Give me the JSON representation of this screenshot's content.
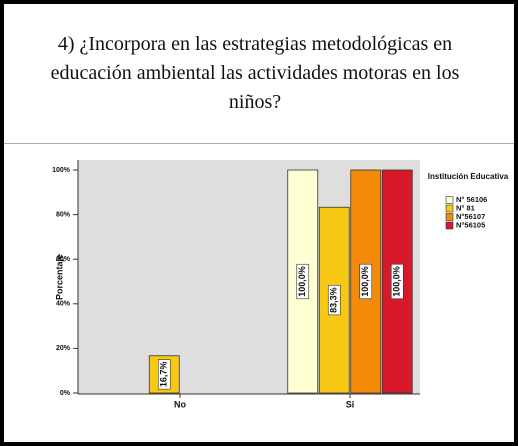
{
  "chart_data": {
    "type": "bar",
    "title": "4) ¿Incorpora en las estrategias metodológicas en educación ambiental las actividades motoras en los niños?",
    "y_label": "Porcentaje",
    "legend_title": "Institución Educativa",
    "categories": [
      "No",
      "Si"
    ],
    "series": [
      {
        "name": "N° 56106",
        "color": "#ffffd4",
        "values": [
          null,
          100
        ],
        "value_labels": [
          null,
          "100,0%"
        ]
      },
      {
        "name": "N° 81",
        "color": "#f7c814",
        "values": [
          16.7,
          83.3
        ],
        "value_labels": [
          "16,7%",
          "83,3%"
        ]
      },
      {
        "name": "N°56107",
        "color": "#f58a0a",
        "values": [
          null,
          100
        ],
        "value_labels": [
          null,
          "100,0%"
        ]
      },
      {
        "name": "N°56105",
        "color": "#d7192a",
        "values": [
          null,
          100
        ],
        "value_labels": [
          null,
          "100,0%"
        ]
      }
    ],
    "ylim": [
      0,
      100
    ],
    "yticks": [
      {
        "value": 0,
        "label": "0%"
      },
      {
        "value": 20,
        "label": "20%"
      },
      {
        "value": 40,
        "label": "40%"
      },
      {
        "value": 60,
        "label": "60%"
      },
      {
        "value": 80,
        "label": "80%"
      },
      {
        "value": 100,
        "label": "100%"
      }
    ],
    "legend": "right"
  }
}
